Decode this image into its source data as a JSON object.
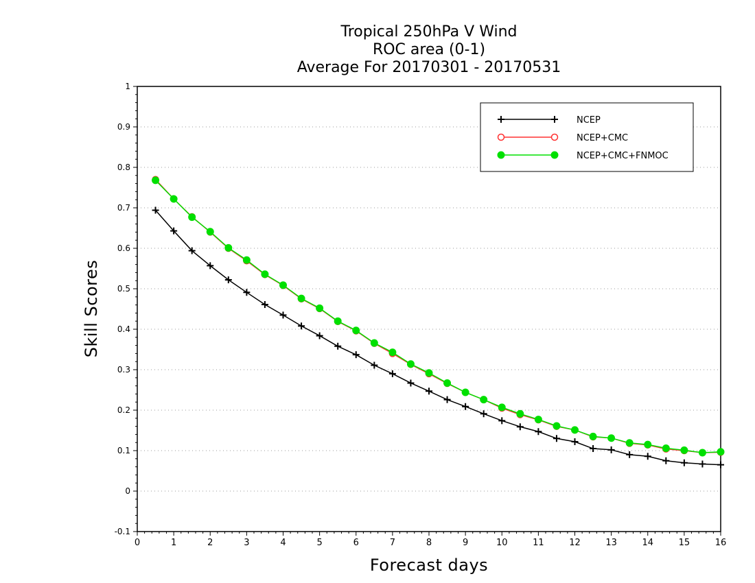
{
  "chart_data": {
    "type": "line",
    "title_lines": [
      "Tropical 250hPa V Wind",
      "ROC area (0-1)",
      "Average For 20170301 - 20170531"
    ],
    "xlabel": "Forecast days",
    "ylabel": "Skill Scores",
    "xlim": [
      0,
      16
    ],
    "ylim": [
      -0.1,
      1
    ],
    "xticks": [
      0,
      1,
      2,
      3,
      4,
      5,
      6,
      7,
      8,
      9,
      10,
      11,
      12,
      13,
      14,
      15,
      16
    ],
    "yticks": [
      -0.1,
      0,
      0.1,
      0.2,
      0.3,
      0.4,
      0.5,
      0.6,
      0.7,
      0.8,
      0.9,
      1
    ],
    "ytick_labels": [
      "-0.1",
      "0",
      "0.1",
      "0.2",
      "0.3",
      "0.4",
      "0.5",
      "0.6",
      "0.7",
      "0.8",
      "0.9",
      "1"
    ],
    "grid": "horizontal dotted",
    "legend_position": "top-right",
    "x": [
      0.5,
      1,
      1.5,
      2,
      2.5,
      3,
      3.5,
      4,
      4.5,
      5,
      5.5,
      6,
      6.5,
      7,
      7.5,
      8,
      8.5,
      9,
      9.5,
      10,
      10.5,
      11,
      11.5,
      12,
      12.5,
      13,
      13.5,
      14,
      14.5,
      15,
      15.5,
      16
    ],
    "series": [
      {
        "name": "NCEP",
        "color": "#000000",
        "marker": "plus",
        "values": [
          0.694,
          0.643,
          0.594,
          0.557,
          0.522,
          0.491,
          0.461,
          0.435,
          0.408,
          0.384,
          0.358,
          0.337,
          0.311,
          0.29,
          0.267,
          0.247,
          0.226,
          0.209,
          0.191,
          0.174,
          0.159,
          0.147,
          0.13,
          0.122,
          0.105,
          0.102,
          0.09,
          0.086,
          0.075,
          0.07,
          0.067,
          0.065
        ]
      },
      {
        "name": "NCEP+CMC",
        "color": "#ff3030",
        "marker": "open-circle",
        "values": [
          0.77,
          0.722,
          0.678,
          0.64,
          0.6,
          0.569,
          0.535,
          0.508,
          0.475,
          0.451,
          0.419,
          0.396,
          0.365,
          0.34,
          0.313,
          0.29,
          0.266,
          0.244,
          0.226,
          0.205,
          0.189,
          0.176,
          0.16,
          0.151,
          0.134,
          0.131,
          0.118,
          0.114,
          0.104,
          0.1,
          0.095,
          0.096
        ]
      },
      {
        "name": "NCEP+CMC+FNMOC",
        "color": "#00e000",
        "marker": "filled-circle",
        "values": [
          0.768,
          0.722,
          0.677,
          0.641,
          0.601,
          0.571,
          0.536,
          0.509,
          0.476,
          0.452,
          0.42,
          0.397,
          0.366,
          0.343,
          0.314,
          0.292,
          0.267,
          0.244,
          0.226,
          0.207,
          0.191,
          0.177,
          0.161,
          0.151,
          0.135,
          0.131,
          0.119,
          0.115,
          0.106,
          0.101,
          0.095,
          0.097
        ]
      }
    ]
  }
}
